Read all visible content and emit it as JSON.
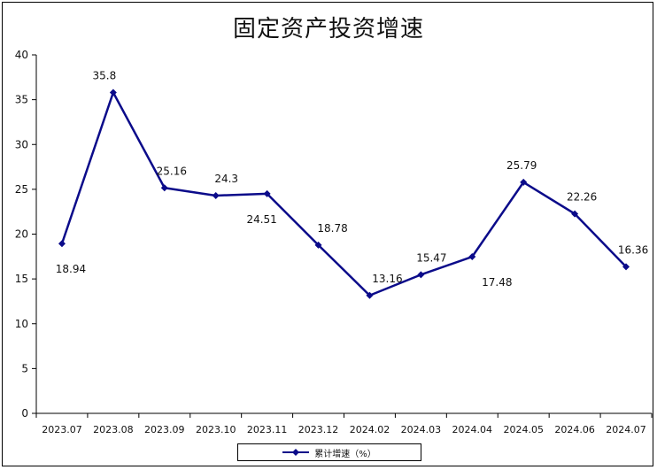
{
  "chart_data": {
    "type": "line",
    "title": "固定资产投资增速",
    "categories": [
      "2023.07",
      "2023.08",
      "2023.09",
      "2023.10",
      "2023.11",
      "2023.12",
      "2024.02",
      "2024.03",
      "2024.04",
      "2024.05",
      "2024.06",
      "2024.07"
    ],
    "series": [
      {
        "name": "累计增速（%）",
        "color": "#0b0b8a",
        "values": [
          18.94,
          35.8,
          25.16,
          24.3,
          24.51,
          18.78,
          13.16,
          15.47,
          17.48,
          25.79,
          22.26,
          16.36
        ],
        "labels": [
          "18.94",
          "35.8",
          "25.16",
          "24.3",
          "24.51",
          "18.78",
          "13.16",
          "15.47",
          "17.48",
          "25.79",
          "22.26",
          "16.36"
        ]
      }
    ],
    "ylim": [
      0,
      40
    ],
    "yticks": [
      0,
      5,
      10,
      15,
      20,
      25,
      30,
      35,
      40
    ],
    "grid": false,
    "legend": "bottom"
  }
}
